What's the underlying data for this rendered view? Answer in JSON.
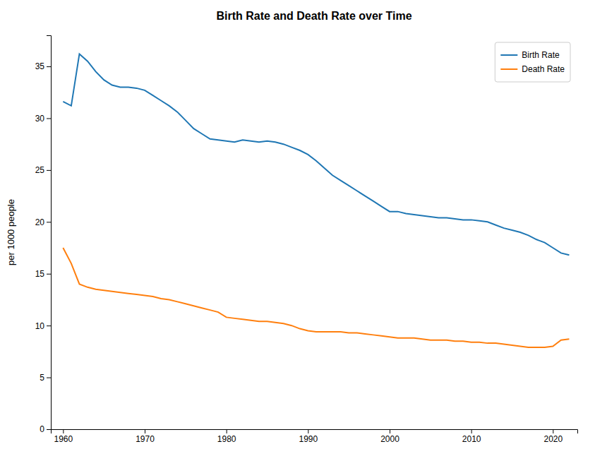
{
  "chart_data": {
    "type": "line",
    "title": "Birth Rate and Death Rate over Time",
    "ylabel": "per 1000 people",
    "x": [
      1960,
      1961,
      1962,
      1963,
      1964,
      1965,
      1966,
      1967,
      1968,
      1969,
      1970,
      1971,
      1972,
      1973,
      1974,
      1975,
      1976,
      1977,
      1978,
      1979,
      1980,
      1981,
      1982,
      1983,
      1984,
      1985,
      1986,
      1987,
      1988,
      1989,
      1990,
      1991,
      1992,
      1993,
      1994,
      1995,
      1996,
      1997,
      1998,
      1999,
      2000,
      2001,
      2002,
      2003,
      2004,
      2005,
      2006,
      2007,
      2008,
      2009,
      2010,
      2011,
      2012,
      2013,
      2014,
      2015,
      2016,
      2017,
      2018,
      2019,
      2020,
      2021,
      2022
    ],
    "series": [
      {
        "name": "Birth Rate",
        "color": "#1f77b4",
        "values": [
          31.6,
          31.2,
          36.2,
          35.5,
          34.5,
          33.7,
          33.2,
          33.0,
          33.0,
          32.9,
          32.7,
          32.2,
          31.7,
          31.2,
          30.6,
          29.8,
          29.0,
          28.5,
          28.0,
          27.9,
          27.8,
          27.7,
          27.9,
          27.8,
          27.7,
          27.8,
          27.7,
          27.5,
          27.2,
          26.9,
          26.5,
          25.9,
          25.2,
          24.5,
          24.0,
          23.5,
          23.0,
          22.5,
          22.0,
          21.5,
          21.0,
          21.0,
          20.8,
          20.7,
          20.6,
          20.5,
          20.4,
          20.4,
          20.3,
          20.2,
          20.2,
          20.1,
          20.0,
          19.7,
          19.4,
          19.2,
          19.0,
          18.7,
          18.3,
          18.0,
          17.5,
          17.0,
          16.8
        ]
      },
      {
        "name": "Death Rate",
        "color": "#ff7f0e",
        "values": [
          17.5,
          16.0,
          14.0,
          13.7,
          13.5,
          13.4,
          13.3,
          13.2,
          13.1,
          13.0,
          12.9,
          12.8,
          12.6,
          12.5,
          12.3,
          12.1,
          11.9,
          11.7,
          11.5,
          11.3,
          10.8,
          10.7,
          10.6,
          10.5,
          10.4,
          10.4,
          10.3,
          10.2,
          10.0,
          9.7,
          9.5,
          9.4,
          9.4,
          9.4,
          9.4,
          9.3,
          9.3,
          9.2,
          9.1,
          9.0,
          8.9,
          8.8,
          8.8,
          8.8,
          8.7,
          8.6,
          8.6,
          8.6,
          8.5,
          8.5,
          8.4,
          8.4,
          8.3,
          8.3,
          8.2,
          8.1,
          8.0,
          7.9,
          7.9,
          7.9,
          8.0,
          8.6,
          8.7
        ]
      }
    ],
    "xlim": [
      1958.5,
      2023
    ],
    "ylim": [
      0,
      38
    ],
    "xticks": [
      1960,
      1970,
      1980,
      1990,
      2000,
      2010,
      2020
    ],
    "yticks": [
      0,
      5,
      10,
      15,
      20,
      25,
      30,
      35
    ],
    "legend": "upper right",
    "grid": false
  }
}
